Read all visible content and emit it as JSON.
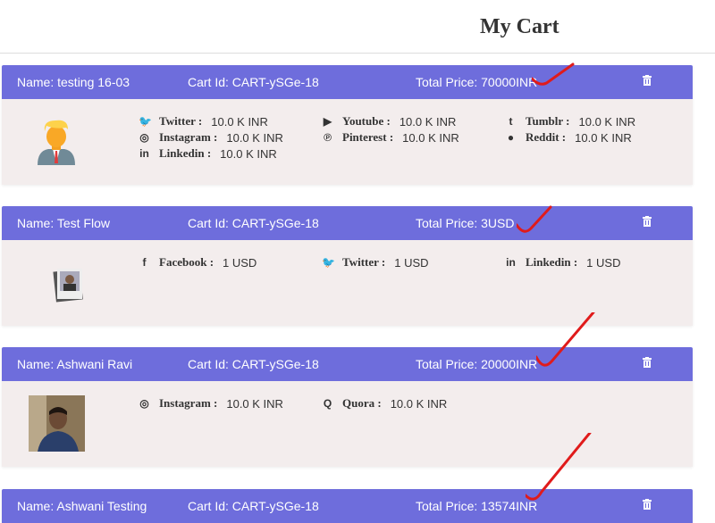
{
  "page": {
    "title": "My Cart"
  },
  "carts": [
    {
      "name": "Name: testing 16-03",
      "cart_id": "Cart Id: CART-ySGe-18",
      "total": "Total Price: 70000INR",
      "avatar": "cartoon-man-avatar",
      "items": [
        {
          "icon": "twitter-icon",
          "label": "Twitter :",
          "value": "10.0 K INR"
        },
        {
          "icon": "instagram-icon",
          "label": "Instagram :",
          "value": "10.0 K INR"
        },
        {
          "icon": "linkedin-icon",
          "label": "Linkedin :",
          "value": "10.0 K INR"
        },
        {
          "icon": "youtube-icon",
          "label": "Youtube :",
          "value": "10.0 K INR"
        },
        {
          "icon": "pinterest-icon",
          "label": "Pinterest :",
          "value": "10.0 K INR"
        },
        {
          "icon": "tumblr-icon",
          "label": "Tumblr :",
          "value": "10.0 K INR"
        },
        {
          "icon": "reddit-icon",
          "label": "Reddit :",
          "value": "10.0 K INR"
        }
      ]
    },
    {
      "name": "Name: Test Flow",
      "cart_id": "Cart Id: CART-ySGe-18",
      "total": "Total Price: 3USD",
      "avatar": "photo-avatar",
      "items": [
        {
          "icon": "facebook-icon",
          "label": "Facebook :",
          "value": "1 USD"
        },
        {
          "icon": "twitter-icon",
          "label": "Twitter :",
          "value": "1 USD"
        },
        {
          "icon": "linkedin-icon",
          "label": "Linkedin :",
          "value": "1 USD"
        }
      ]
    },
    {
      "name": "Name: Ashwani Ravi",
      "cart_id": "Cart Id: CART-ySGe-18",
      "total": "Total Price: 20000INR",
      "avatar": "photo-avatar",
      "items": [
        {
          "icon": "instagram-icon",
          "label": "Instagram :",
          "value": "10.0 K INR"
        },
        {
          "icon": "quora-icon",
          "label": "Quora :",
          "value": "10.0 K INR"
        }
      ]
    },
    {
      "name": "Name: Ashwani Testing",
      "cart_id": "Cart Id: CART-ySGe-18",
      "total": "Total Price: 13574INR"
    }
  ],
  "colors": {
    "header": "#6e6ddc",
    "body": "#f3eded",
    "annotation": "#e01b1b"
  }
}
